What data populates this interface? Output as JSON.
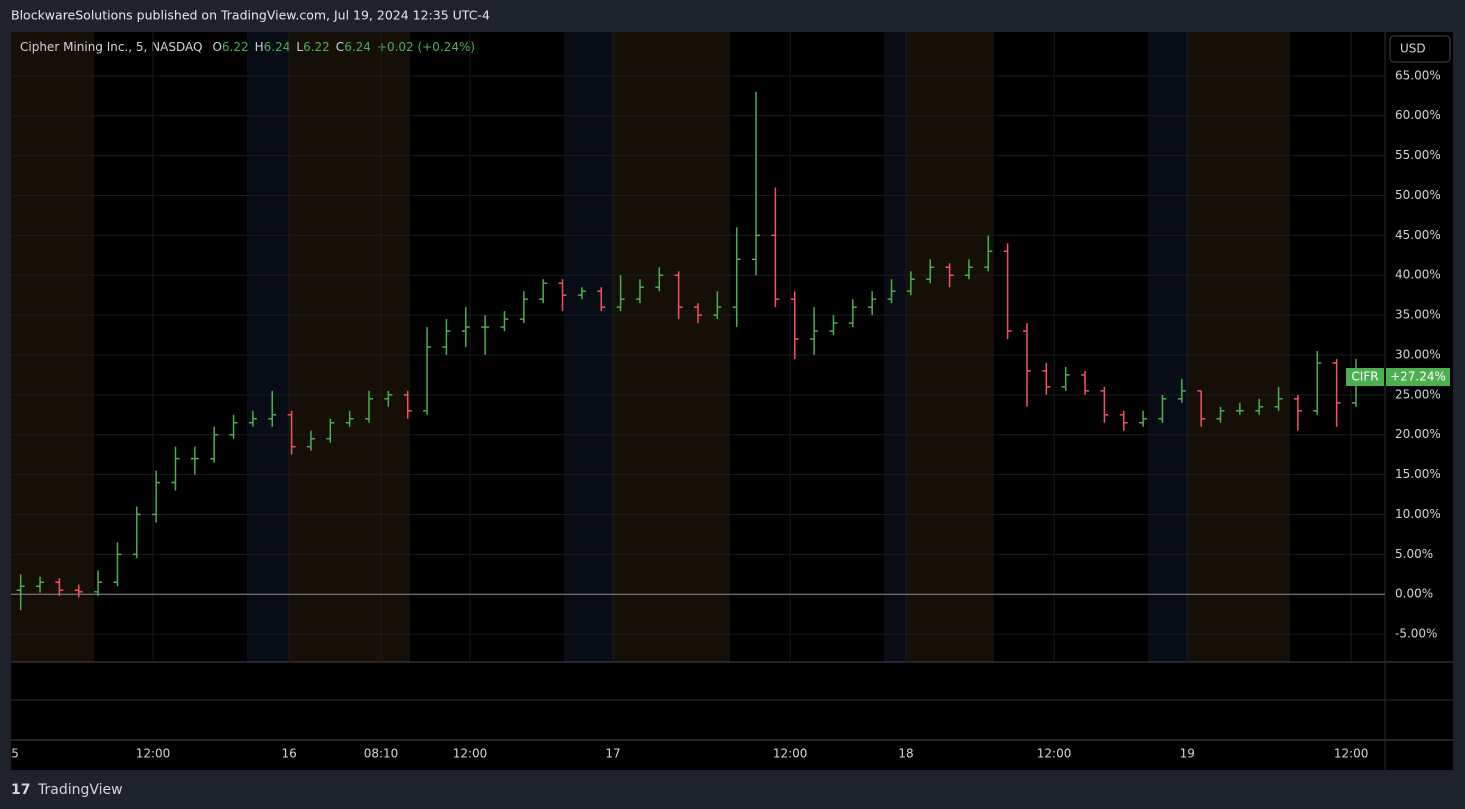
{
  "header": {
    "attribution": "BlockwareSolutions published on TradingView.com, Jul 19, 2024 12:35 UTC-4",
    "brand": "TradingView"
  },
  "chart_data": {
    "type": "ohlc",
    "title": "Cipher Mining Inc., 5, NASDAQ",
    "legend_ohlc": [
      {
        "label": "O",
        "value": 6.22
      },
      {
        "label": "H",
        "value": 6.24
      },
      {
        "label": "L",
        "value": 6.22
      },
      {
        "label": "C",
        "value": 6.24
      }
    ],
    "change": "+0.02 (+0.24%)",
    "currency": "USD",
    "symbol": "CIFR",
    "last_value_label": "+27.24%",
    "up_color": "#4caf50",
    "down_color": "#f7525f",
    "x": [
      0.5,
      1.5,
      2.5,
      3.5,
      4.5,
      5.5,
      6.5,
      7.5,
      8.5,
      9.5,
      10.5,
      11.5,
      12.5,
      13.5,
      14.5,
      15.5,
      16.5,
      17.5,
      18.5,
      19.5,
      20.5,
      21.5,
      22.5,
      23.5,
      24.5,
      25.5,
      26.5,
      27.5,
      28.5,
      29.5,
      30.5,
      31.5,
      32.5,
      33.5,
      34.5,
      35.5,
      36.5,
      37.5,
      38.5,
      39.5,
      40.5,
      41.5,
      42.5,
      43.5,
      44.5,
      45.5,
      46.5,
      47.5,
      48.5,
      49.5,
      50.5,
      51.5,
      52.5,
      53.5,
      54.5,
      55.5,
      56.5,
      57.5,
      58.5,
      59.5,
      60.5,
      61.5,
      62.5,
      63.5,
      64.5,
      65.5,
      66.5,
      67.5,
      68.5,
      69.5
    ],
    "open": [
      0.5,
      1,
      1.5,
      0.5,
      0.3,
      1.5,
      5,
      10,
      14,
      17,
      17,
      20,
      21.5,
      22,
      22.5,
      18.5,
      19.5,
      21.5,
      22,
      24.5,
      25,
      23,
      31,
      33,
      33.5,
      33.5,
      34.5,
      37,
      39,
      37.5,
      38,
      36,
      37,
      38.5,
      40,
      36,
      35,
      36,
      42,
      45,
      37,
      32,
      33,
      34,
      36,
      37,
      38,
      39.5,
      41,
      40,
      41,
      43,
      33,
      28,
      26,
      27.5,
      25.5,
      22.5,
      21.5,
      22,
      24.5,
      25.5,
      22,
      23,
      23,
      23.5,
      24.5,
      23,
      29,
      24
    ],
    "high": [
      2.5,
      2.2,
      2,
      1.2,
      3,
      6.5,
      11,
      15.5,
      18.5,
      18.5,
      21,
      22.5,
      23,
      25.5,
      23,
      20.5,
      22,
      23,
      25.5,
      25.5,
      25.5,
      33.5,
      34.5,
      36,
      35,
      35.5,
      38,
      39.5,
      39.5,
      38.5,
      38.5,
      40,
      39.5,
      41,
      40.5,
      36.5,
      38,
      46,
      63,
      51,
      38,
      36,
      35,
      37,
      38,
      39.5,
      40.5,
      42,
      41.5,
      42,
      45,
      44,
      34,
      29,
      28.5,
      28,
      26,
      23,
      23,
      25,
      27,
      25.5,
      23.5,
      24,
      24.5,
      26,
      25,
      30.5,
      29.5,
      29.5
    ],
    "low": [
      -2,
      0.2,
      -0.2,
      -0.4,
      -0.2,
      1,
      4.5,
      9,
      13,
      15,
      16.5,
      19.5,
      21,
      21,
      17.5,
      18,
      19,
      21,
      21.5,
      23.5,
      22,
      22.5,
      30,
      31,
      30,
      33,
      34,
      36.5,
      35.5,
      37,
      35.5,
      35.5,
      36.5,
      38,
      34.5,
      34,
      34.5,
      33.5,
      40,
      36,
      29.5,
      30,
      32.5,
      33.5,
      35,
      36.5,
      37.5,
      39,
      38.5,
      39.5,
      40.5,
      32,
      23.5,
      25,
      25.5,
      25,
      21.5,
      20.5,
      21,
      21.5,
      24,
      21,
      21.5,
      22.5,
      22.5,
      23,
      20.5,
      22.5,
      21,
      23.5
    ],
    "close": [
      1,
      1.5,
      0.5,
      0.3,
      1.5,
      5,
      10,
      14,
      17,
      17,
      20,
      21.5,
      22,
      22.5,
      18.5,
      19.5,
      21.5,
      22,
      24.5,
      25,
      23,
      31,
      33,
      33.5,
      33.5,
      34.5,
      37,
      39,
      37.5,
      38,
      36,
      37,
      38.5,
      40,
      36,
      35,
      36,
      42,
      45,
      37,
      32,
      33,
      34,
      36,
      37,
      38,
      39.5,
      41,
      40,
      41,
      43,
      33,
      28,
      26,
      27.5,
      25.5,
      22.5,
      21.5,
      22,
      24.5,
      25.5,
      22,
      23,
      23,
      23.5,
      24.5,
      23,
      29,
      24,
      27.24
    ],
    "xlim": [
      0,
      71
    ],
    "xticks": [
      {
        "value": 0.21,
        "label": "5"
      },
      {
        "value": 7.34,
        "label": "12:00"
      },
      {
        "value": 14.37,
        "label": "16"
      },
      {
        "value": 19.12,
        "label": "08:10"
      },
      {
        "value": 23.72,
        "label": "12:00"
      },
      {
        "value": 31.11,
        "label": "17"
      },
      {
        "value": 40.26,
        "label": "12:00"
      },
      {
        "value": 46.25,
        "label": "18"
      },
      {
        "value": 53.9,
        "label": "12:00"
      },
      {
        "value": 60.78,
        "label": "19"
      },
      {
        "value": 69.25,
        "label": "12:00"
      }
    ],
    "ylim": [
      -8.5,
      70.5
    ],
    "yticks": [
      {
        "value": -5,
        "label": "-5.00%"
      },
      {
        "value": 0,
        "label": "0.00%"
      },
      {
        "value": 5,
        "label": "5.00%"
      },
      {
        "value": 10,
        "label": "10.00%"
      },
      {
        "value": 15,
        "label": "15.00%"
      },
      {
        "value": 20,
        "label": "20.00%"
      },
      {
        "value": 25,
        "label": "25.00%"
      },
      {
        "value": 30,
        "label": "30.00%"
      },
      {
        "value": 35,
        "label": "35.00%"
      },
      {
        "value": 40,
        "label": "40.00%"
      },
      {
        "value": 45,
        "label": "45.00%"
      },
      {
        "value": 50,
        "label": "50.00%"
      },
      {
        "value": 55,
        "label": "55.00%"
      },
      {
        "value": 60,
        "label": "60.00%"
      },
      {
        "value": 65,
        "label": "65.00%"
      }
    ],
    "grid": true
  }
}
